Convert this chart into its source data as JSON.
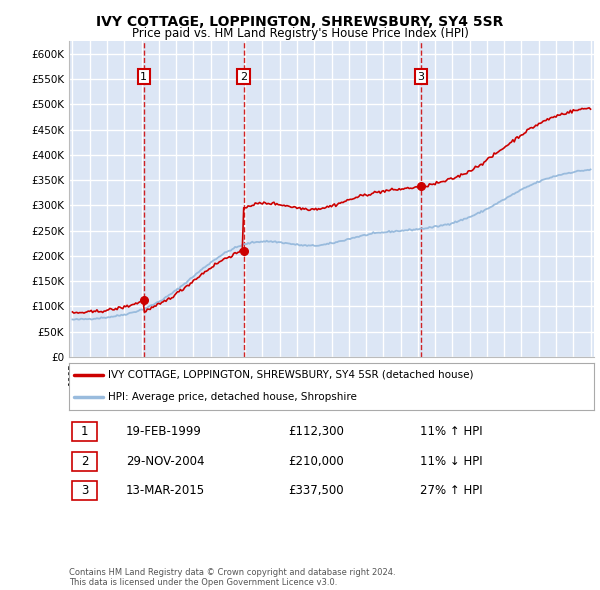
{
  "title": "IVY COTTAGE, LOPPINGTON, SHREWSBURY, SY4 5SR",
  "subtitle": "Price paid vs. HM Land Registry's House Price Index (HPI)",
  "bg_color": "#dce6f5",
  "grid_color": "#ffffff",
  "ylim": [
    0,
    625000
  ],
  "yticks": [
    0,
    50000,
    100000,
    150000,
    200000,
    250000,
    300000,
    350000,
    400000,
    450000,
    500000,
    550000,
    600000
  ],
  "ytick_labels": [
    "£0",
    "£50K",
    "£100K",
    "£150K",
    "£200K",
    "£250K",
    "£300K",
    "£350K",
    "£400K",
    "£450K",
    "£500K",
    "£550K",
    "£600K"
  ],
  "xstart": 1995,
  "xend": 2025,
  "sale_dates": [
    1999.13,
    2004.91,
    2015.19
  ],
  "sale_prices": [
    112300,
    210000,
    337500
  ],
  "sale_labels": [
    "1",
    "2",
    "3"
  ],
  "vline_color": "#cc0000",
  "sale_marker_color": "#cc0000",
  "hpi_line_color": "#99bbdd",
  "price_line_color": "#cc0000",
  "legend_label_price": "IVY COTTAGE, LOPPINGTON, SHREWSBURY, SY4 5SR (detached house)",
  "legend_label_hpi": "HPI: Average price, detached house, Shropshire",
  "table_rows": [
    [
      "1",
      "19-FEB-1999",
      "£112,300",
      "11% ↑ HPI"
    ],
    [
      "2",
      "29-NOV-2004",
      "£210,000",
      "11% ↓ HPI"
    ],
    [
      "3",
      "13-MAR-2015",
      "£337,500",
      "27% ↑ HPI"
    ]
  ],
  "footnote": "Contains HM Land Registry data © Crown copyright and database right 2024.\nThis data is licensed under the Open Government Licence v3.0.",
  "label_box_color": "#ffffff",
  "label_box_edge": "#cc0000"
}
